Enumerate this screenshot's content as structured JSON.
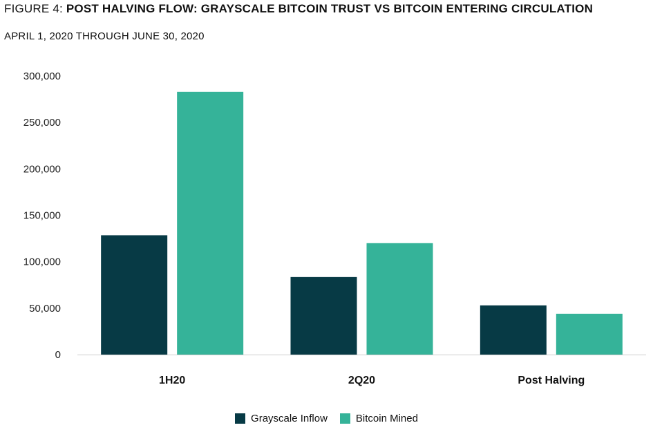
{
  "title": {
    "prefix": "FIGURE 4:",
    "main": "POST HALVING FLOW: GRAYSCALE BITCOIN TRUST VS BITCOIN ENTERING CIRCULATION"
  },
  "subtitle": "APRIL 1, 2020 THROUGH JUNE 30, 2020",
  "colors": {
    "grayscale_inflow": "#073a45",
    "bitcoin_mined": "#35b399",
    "axis": "#cccccc"
  },
  "chart_data": {
    "type": "bar",
    "categories": [
      "1H20",
      "2Q20",
      "Post Halving"
    ],
    "series": [
      {
        "name": "Grayscale Inflow",
        "values": [
          128500,
          83500,
          53000
        ]
      },
      {
        "name": "Bitcoin Mined",
        "values": [
          283000,
          120000,
          44000
        ]
      }
    ],
    "ylim": [
      0,
      300000
    ],
    "yticks": [
      0,
      50000,
      100000,
      150000,
      200000,
      250000,
      300000
    ],
    "ytick_labels": [
      "0",
      "50,000",
      "100,000",
      "150,000",
      "200,000",
      "250,000",
      "300,000"
    ],
    "grid": false,
    "legend": "bottom-center"
  }
}
